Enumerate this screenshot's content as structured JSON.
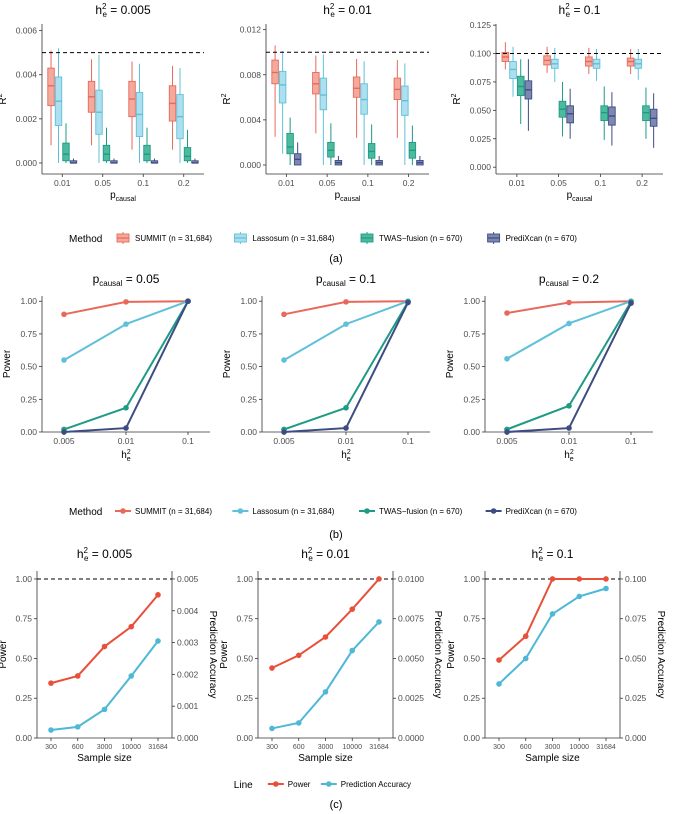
{
  "colors": {
    "summit": "#E8695A",
    "lassosum": "#5FC0DA",
    "twas": "#1E9B84",
    "predixcan": "#3D4D83",
    "summit_fill": "#F4A99D",
    "lassosum_fill": "#ADDFEE",
    "twas_fill": "#4DBA9F",
    "predixcan_fill": "#7D87B0",
    "power_line": "#E8503A",
    "accuracy_line": "#4FB8D6"
  },
  "panel_labels": [
    "(a)",
    "(b)",
    "(c)"
  ],
  "legend_a": {
    "title": "Method",
    "entries": [
      "SUMMIT (n = 31,684)",
      "Lassosum (n = 31,684)",
      "TWAS−fusion (n = 670)",
      "PrediXcan (n = 670)"
    ]
  },
  "legend_b": {
    "title": "Method",
    "entries": [
      "SUMMIT (n = 31,684)",
      "Lassosum (n = 31,684)",
      "TWAS−fusion (n = 670)",
      "PrediXcan (n = 670)"
    ]
  },
  "legend_c": {
    "title": "Line",
    "entries": [
      "Power",
      "Prediction Accuracy"
    ]
  },
  "chart_data": [
    {
      "type": "box",
      "title": "h²e = 0.005",
      "title_main": "h",
      "title_sup": "2",
      "title_sub": "e",
      "title_value": " = 0.005",
      "ylabel": "R²",
      "xlabel": "pcausal",
      "categories": [
        "0.01",
        "0.05",
        "0.1",
        "0.2"
      ],
      "ylim": [
        -0.0005,
        0.0063
      ],
      "yticks": [
        0.0,
        0.002,
        0.004,
        0.006
      ],
      "ytick_labels": [
        "0.000",
        "0.002",
        "0.004",
        "0.006"
      ],
      "reference_line": 0.005,
      "series": [
        {
          "name": "SUMMIT",
          "boxes": [
            [
              0.0008,
              0.0026,
              0.0035,
              0.0043,
              0.0051
            ],
            [
              0.0008,
              0.0023,
              0.003,
              0.0037,
              0.0047
            ],
            [
              0.0006,
              0.0021,
              0.0029,
              0.0037,
              0.0046
            ],
            [
              0.0006,
              0.0019,
              0.0027,
              0.0035,
              0.0044
            ]
          ]
        },
        {
          "name": "Lassosum",
          "boxes": [
            [
              0.0,
              0.0017,
              0.0028,
              0.0039,
              0.0052
            ],
            [
              0.0,
              0.0013,
              0.0023,
              0.0033,
              0.0049
            ],
            [
              0.0,
              0.0012,
              0.0022,
              0.0032,
              0.0045
            ],
            [
              0.0,
              0.0011,
              0.0021,
              0.0031,
              0.0043
            ]
          ]
        },
        {
          "name": "TWAS-fusion",
          "boxes": [
            [
              0.0,
              0.0001,
              0.0004,
              0.0009,
              0.0018
            ],
            [
              0.0,
              0.0001,
              0.0004,
              0.0008,
              0.0016
            ],
            [
              0.0,
              0.0001,
              0.0004,
              0.0008,
              0.0016
            ],
            [
              0.0,
              0.0001,
              0.0003,
              0.0007,
              0.0015
            ]
          ]
        },
        {
          "name": "PrediXcan",
          "boxes": [
            [
              0.0,
              0.0,
              0.0,
              0.0001,
              0.0002
            ],
            [
              0.0,
              0.0,
              0.0,
              0.0001,
              0.0002
            ],
            [
              0.0,
              0.0,
              0.0,
              0.0001,
              0.0002
            ],
            [
              0.0,
              0.0,
              0.0,
              0.0001,
              0.0002
            ]
          ]
        }
      ]
    },
    {
      "type": "box",
      "title": "h²e = 0.01",
      "title_main": "h",
      "title_sup": "2",
      "title_sub": "e",
      "title_value": " = 0.01",
      "ylabel": "R²",
      "xlabel": "pcausal",
      "categories": [
        "0.01",
        "0.05",
        "0.1",
        "0.2"
      ],
      "ylim": [
        -0.0008,
        0.0125
      ],
      "yticks": [
        0.0,
        0.004,
        0.008,
        0.012
      ],
      "ytick_labels": [
        "0.000",
        "0.004",
        "0.008",
        "0.012"
      ],
      "reference_line": 0.01,
      "series": [
        {
          "name": "SUMMIT",
          "boxes": [
            [
              0.0025,
              0.0072,
              0.0082,
              0.0093,
              0.0106
            ],
            [
              0.0028,
              0.0063,
              0.0072,
              0.0082,
              0.0097
            ],
            [
              0.0024,
              0.006,
              0.0068,
              0.0078,
              0.0094
            ],
            [
              0.0024,
              0.0058,
              0.0067,
              0.0077,
              0.0093
            ]
          ]
        },
        {
          "name": "Lassosum",
          "boxes": [
            [
              0.001,
              0.0055,
              0.0071,
              0.0083,
              0.0101
            ],
            [
              0.0,
              0.0049,
              0.0062,
              0.0077,
              0.0098
            ],
            [
              0.0,
              0.0045,
              0.0058,
              0.0072,
              0.0092
            ],
            [
              0.0,
              0.0044,
              0.0057,
              0.007,
              0.009
            ]
          ]
        },
        {
          "name": "TWAS-fusion",
          "boxes": [
            [
              0.0,
              0.001,
              0.0016,
              0.0028,
              0.0042
            ],
            [
              0.0,
              0.0007,
              0.0013,
              0.002,
              0.0037
            ],
            [
              0.0,
              0.0006,
              0.0012,
              0.0019,
              0.0036
            ],
            [
              0.0,
              0.0006,
              0.0013,
              0.002,
              0.0035
            ]
          ]
        },
        {
          "name": "PrediXcan",
          "boxes": [
            [
              0.0,
              0.0,
              0.0005,
              0.001,
              0.002
            ],
            [
              0.0,
              0.0,
              0.0002,
              0.0004,
              0.0008
            ],
            [
              0.0,
              0.0,
              0.0002,
              0.0004,
              0.0008
            ],
            [
              0.0,
              0.0,
              0.0002,
              0.0004,
              0.0008
            ]
          ]
        }
      ]
    },
    {
      "type": "box",
      "title": "h²e = 0.1",
      "title_main": "h",
      "title_sup": "2",
      "title_sub": "e",
      "title_value": " = 0.1",
      "ylabel": "R²",
      "xlabel": "pcausal",
      "categories": [
        "0.01",
        "0.05",
        "0.1",
        "0.2"
      ],
      "ylim": [
        -0.006,
        0.126
      ],
      "yticks": [
        0.0,
        0.025,
        0.05,
        0.075,
        0.1,
        0.125
      ],
      "ytick_labels": [
        "0.000",
        "0.025",
        "0.050",
        "0.075",
        "0.100",
        "0.125"
      ],
      "reference_line": 0.1,
      "series": [
        {
          "name": "SUMMIT",
          "boxes": [
            [
              0.086,
              0.093,
              0.097,
              0.101,
              0.11
            ],
            [
              0.083,
              0.09,
              0.094,
              0.098,
              0.106
            ],
            [
              0.082,
              0.089,
              0.093,
              0.097,
              0.105
            ],
            [
              0.082,
              0.089,
              0.093,
              0.096,
              0.104
            ]
          ]
        },
        {
          "name": "Lassosum",
          "boxes": [
            [
              0.062,
              0.078,
              0.086,
              0.093,
              0.106
            ],
            [
              0.075,
              0.087,
              0.091,
              0.095,
              0.105
            ],
            [
              0.076,
              0.087,
              0.091,
              0.095,
              0.104
            ],
            [
              0.077,
              0.087,
              0.091,
              0.095,
              0.104
            ]
          ]
        },
        {
          "name": "TWAS-fusion",
          "boxes": [
            [
              0.038,
              0.063,
              0.071,
              0.08,
              0.095
            ],
            [
              0.027,
              0.044,
              0.051,
              0.058,
              0.075
            ],
            [
              0.024,
              0.041,
              0.048,
              0.054,
              0.071
            ],
            [
              0.025,
              0.041,
              0.048,
              0.054,
              0.07
            ]
          ]
        },
        {
          "name": "PrediXcan",
          "boxes": [
            [
              0.032,
              0.06,
              0.068,
              0.076,
              0.095
            ],
            [
              0.025,
              0.039,
              0.047,
              0.054,
              0.069
            ],
            [
              0.019,
              0.037,
              0.045,
              0.053,
              0.066
            ],
            [
              0.017,
              0.036,
              0.043,
              0.051,
              0.065
            ]
          ]
        }
      ]
    },
    {
      "type": "line",
      "title": "pcausal = 0.05",
      "title_main": "p",
      "title_sub": "causal",
      "title_value": " = 0.05",
      "ylabel": "Power",
      "xlabel": "h²e",
      "categories": [
        "0.005",
        "0.01",
        "0.1"
      ],
      "ylim": [
        0,
        1.04
      ],
      "yticks": [
        0,
        0.25,
        0.5,
        0.75,
        1
      ],
      "ytick_labels": [
        "0.00",
        "0.25",
        "0.50",
        "0.75",
        "1.00"
      ],
      "series": [
        {
          "name": "SUMMIT",
          "values": [
            0.9,
            0.995,
            1.0
          ]
        },
        {
          "name": "Lassosum",
          "values": [
            0.55,
            0.825,
            1.0
          ]
        },
        {
          "name": "TWAS-fusion",
          "values": [
            0.02,
            0.185,
            1.0
          ]
        },
        {
          "name": "PrediXcan",
          "values": [
            0.0,
            0.03,
            1.0
          ]
        }
      ]
    },
    {
      "type": "line",
      "title": "pcausal = 0.1",
      "title_main": "p",
      "title_sub": "causal",
      "title_value": " = 0.1",
      "ylabel": "Power",
      "xlabel": "h²e",
      "categories": [
        "0.005",
        "0.01",
        "0.1"
      ],
      "ylim": [
        0,
        1.04
      ],
      "yticks": [
        0,
        0.25,
        0.5,
        0.75,
        1
      ],
      "ytick_labels": [
        "0.00",
        "0.25",
        "0.50",
        "0.75",
        "1.00"
      ],
      "series": [
        {
          "name": "SUMMIT",
          "values": [
            0.9,
            0.995,
            1.0
          ]
        },
        {
          "name": "Lassosum",
          "values": [
            0.55,
            0.825,
            1.0
          ]
        },
        {
          "name": "TWAS-fusion",
          "values": [
            0.02,
            0.185,
            0.995
          ]
        },
        {
          "name": "PrediXcan",
          "values": [
            0.0,
            0.03,
            0.99
          ]
        }
      ]
    },
    {
      "type": "line",
      "title": "pcausal = 0.2",
      "title_main": "p",
      "title_sub": "causal",
      "title_value": " = 0.2",
      "ylabel": "Power",
      "xlabel": "h²e",
      "categories": [
        "0.005",
        "0.01",
        "0.1"
      ],
      "ylim": [
        0,
        1.04
      ],
      "yticks": [
        0,
        0.25,
        0.5,
        0.75,
        1
      ],
      "ytick_labels": [
        "0.00",
        "0.25",
        "0.50",
        "0.75",
        "1.00"
      ],
      "series": [
        {
          "name": "SUMMIT",
          "values": [
            0.91,
            0.99,
            1.0
          ]
        },
        {
          "name": "Lassosum",
          "values": [
            0.56,
            0.83,
            1.0
          ]
        },
        {
          "name": "TWAS-fusion",
          "values": [
            0.02,
            0.2,
            0.995
          ]
        },
        {
          "name": "PrediXcan",
          "values": [
            0.0,
            0.03,
            0.985
          ]
        }
      ]
    },
    {
      "type": "line_dual_axis",
      "title": "h²e = 0.005",
      "title_main": "h",
      "title_sup": "2",
      "title_sub": "e",
      "title_value": " = 0.005",
      "ylabel": "Power",
      "ylabel_right": "Prediction Accuracy",
      "xlabel": "Sample size",
      "categories": [
        "300",
        "600",
        "3000",
        "10000",
        "31684"
      ],
      "ylim": [
        0,
        1.05
      ],
      "yticks": [
        0,
        0.25,
        0.5,
        0.75,
        1
      ],
      "ytick_labels": [
        "0.00",
        "0.25",
        "0.50",
        "0.75",
        "1.00"
      ],
      "ylim_right": [
        0,
        0.00525
      ],
      "yticks_right": [
        0,
        0.001,
        0.002,
        0.003,
        0.004,
        0.005
      ],
      "ytick_labels_right": [
        "0.000",
        "0.001",
        "0.002",
        "0.003",
        "0.004",
        "0.005"
      ],
      "reference_line": 1.0,
      "series": [
        {
          "name": "Power",
          "axis": "left",
          "values": [
            0.345,
            0.39,
            0.575,
            0.7,
            0.9
          ]
        },
        {
          "name": "Prediction Accuracy",
          "axis": "right",
          "values": [
            0.00025,
            0.00035,
            0.0009,
            0.00195,
            0.00305
          ]
        }
      ]
    },
    {
      "type": "line_dual_axis",
      "title": "h²e = 0.01",
      "title_main": "h",
      "title_sup": "2",
      "title_sub": "e",
      "title_value": " = 0.01",
      "ylabel": "Power",
      "ylabel_right": "Prediction Accuracy",
      "xlabel": "Sample size",
      "categories": [
        "300",
        "600",
        "3000",
        "10000",
        "31684"
      ],
      "ylim": [
        0,
        1.05
      ],
      "yticks": [
        0,
        0.25,
        0.5,
        0.75,
        1
      ],
      "ytick_labels": [
        "0.00",
        "0.25",
        "0.50",
        "0.75",
        "1.00"
      ],
      "ylim_right": [
        0,
        0.0105
      ],
      "yticks_right": [
        0,
        0.0025,
        0.005,
        0.0075,
        0.01
      ],
      "ytick_labels_right": [
        "0.0000",
        "0.0025",
        "0.0050",
        "0.0075",
        "0.0100"
      ],
      "reference_line": 1.0,
      "series": [
        {
          "name": "Power",
          "axis": "left",
          "values": [
            0.44,
            0.52,
            0.635,
            0.81,
            1.0
          ]
        },
        {
          "name": "Prediction Accuracy",
          "axis": "right",
          "values": [
            0.0006,
            0.00095,
            0.0029,
            0.0055,
            0.0073
          ]
        }
      ]
    },
    {
      "type": "line_dual_axis",
      "title": "h²e = 0.1",
      "title_main": "h",
      "title_sup": "2",
      "title_sub": "e",
      "title_value": " = 0.1",
      "ylabel": "Power",
      "ylabel_right": "Prediction Accuracy",
      "xlabel": "Sample size",
      "categories": [
        "300",
        "600",
        "3000",
        "10000",
        "31684"
      ],
      "ylim": [
        0,
        1.05
      ],
      "yticks": [
        0,
        0.25,
        0.5,
        0.75,
        1
      ],
      "ytick_labels": [
        "0.00",
        "0.25",
        "0.50",
        "0.75",
        "1.00"
      ],
      "ylim_right": [
        0,
        0.105
      ],
      "yticks_right": [
        0,
        0.025,
        0.05,
        0.075,
        0.1
      ],
      "ytick_labels_right": [
        "0.000",
        "0.025",
        "0.050",
        "0.075",
        "0.100"
      ],
      "reference_line": 1.0,
      "series": [
        {
          "name": "Power",
          "axis": "left",
          "values": [
            0.49,
            0.64,
            1.0,
            1.0,
            1.0
          ]
        },
        {
          "name": "Prediction Accuracy",
          "axis": "right",
          "values": [
            0.034,
            0.05,
            0.078,
            0.089,
            0.094
          ]
        }
      ]
    }
  ]
}
